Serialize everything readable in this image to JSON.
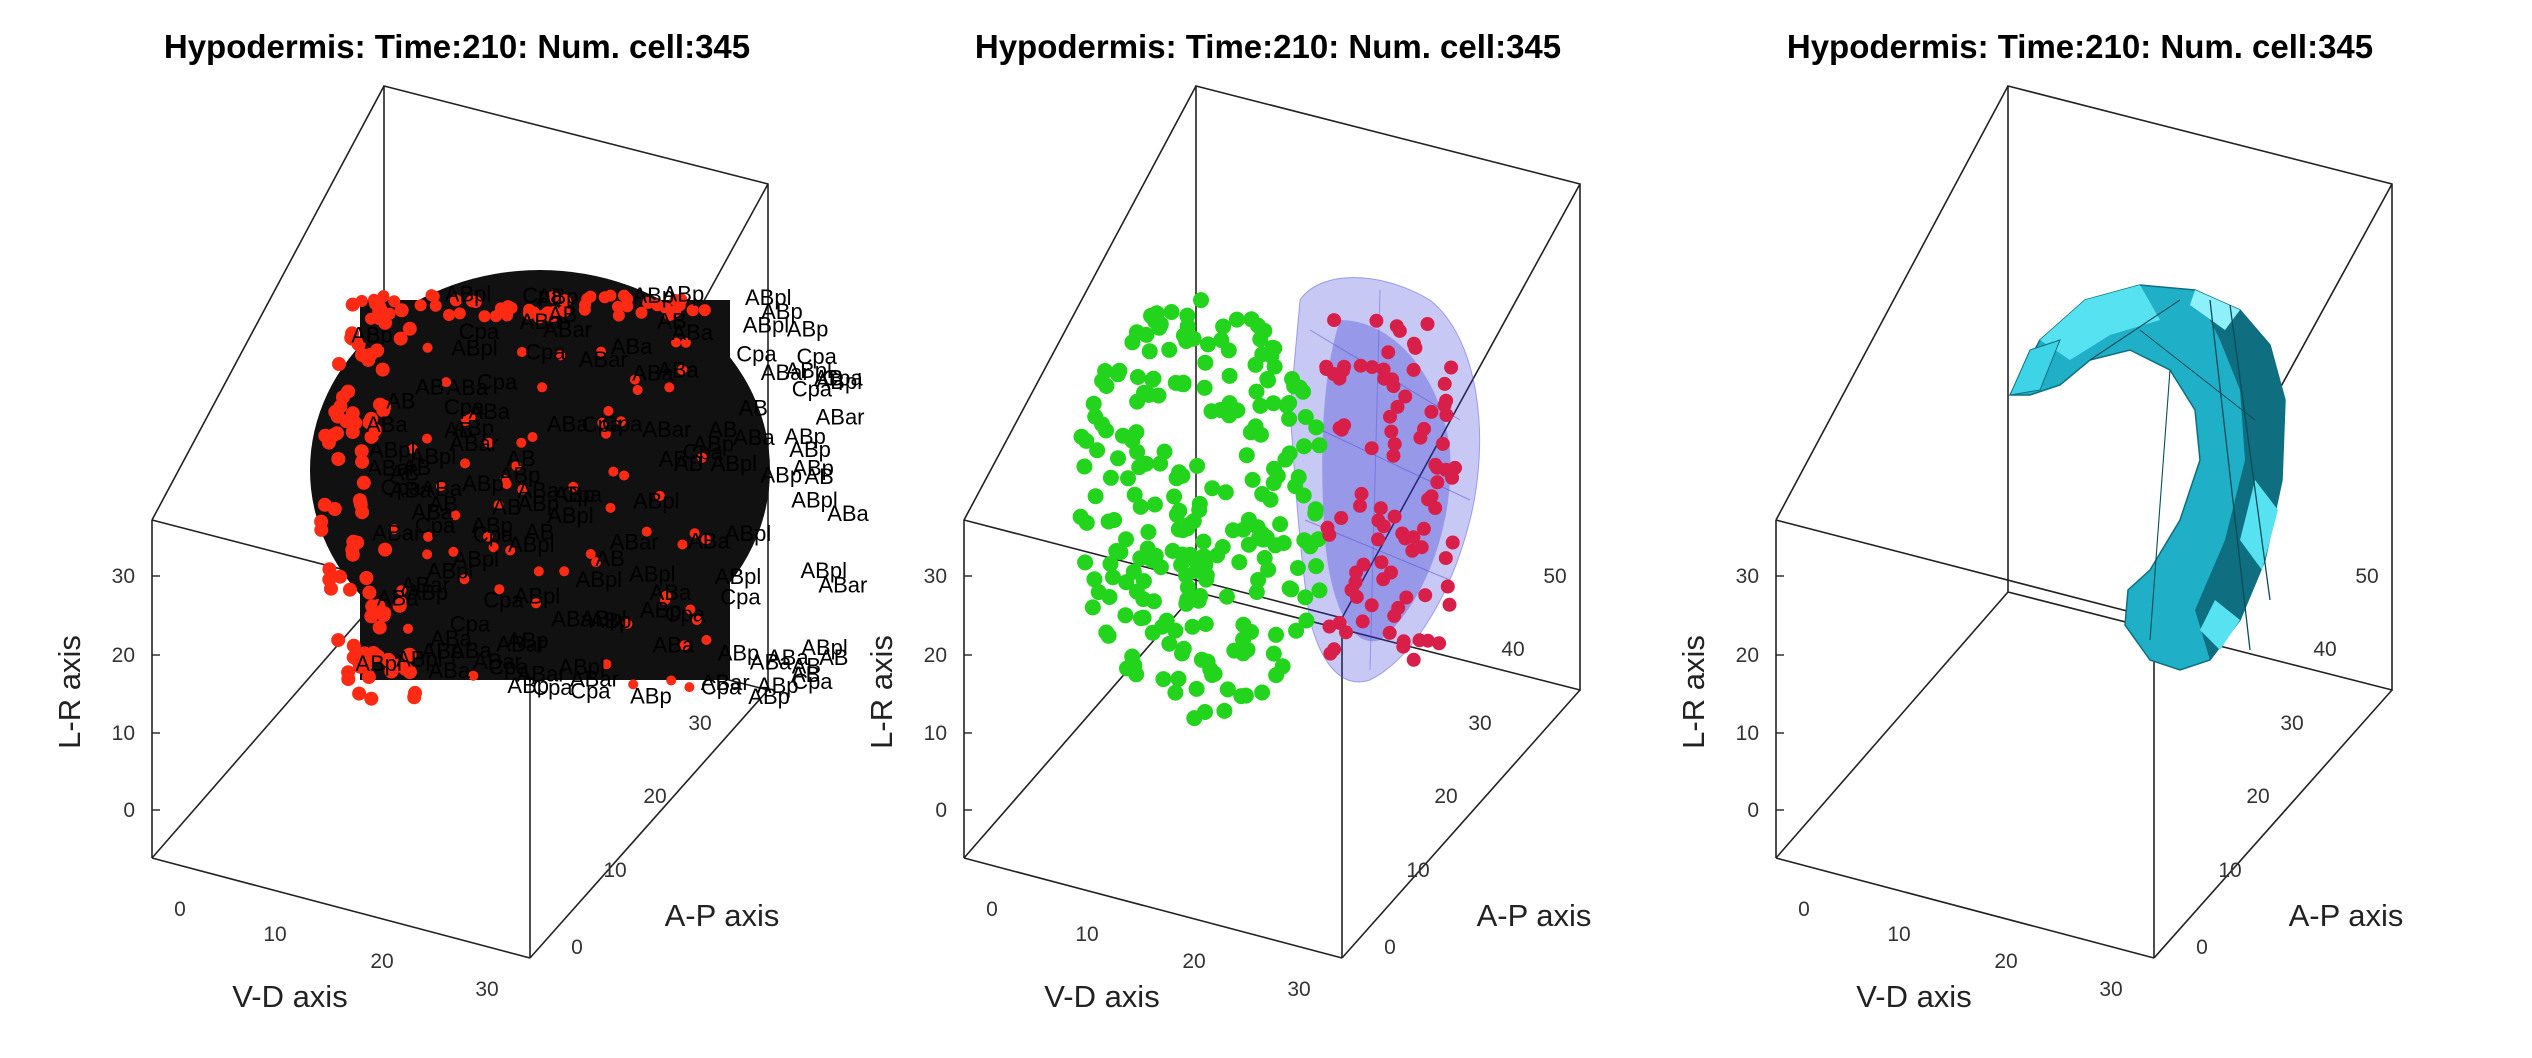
{
  "colors": {
    "background": "#ffffff",
    "red_cells": "#ff2a14",
    "green_cells": "#22d41c",
    "magenta_cells": "#d81f4a",
    "hull_blue": "#3a3ad6",
    "surface_cyan": "#1fb0c8",
    "surface_dark": "#0f6f80",
    "surface_light": "#57e2f2"
  },
  "icons": [],
  "chart_data": [
    {
      "type": "scatter",
      "variant": "3d-scatter-labeled",
      "title": "Hypodermis: Time:210: Num. cell:345",
      "xlabel": "V-D axis",
      "ylabel": "A-P axis",
      "zlabel": "L-R axis",
      "xlim": [
        -5,
        32
      ],
      "ylim": [
        -5,
        32
      ],
      "zlim": [
        -5,
        40
      ],
      "xticks": [
        "0",
        "10",
        "20",
        "30"
      ],
      "yticks": [
        "0",
        "10",
        "20",
        "30"
      ],
      "zticks": [
        "0",
        "10",
        "20",
        "30"
      ],
      "series": [
        {
          "color": "red_cells",
          "count": 345
        }
      ],
      "grid": false,
      "legend": "none"
    },
    {
      "type": "scatter",
      "variant": "3d-scatter-with-hull",
      "title": "Hypodermis: Time:210: Num. cell:345",
      "xlabel": "V-D axis",
      "ylabel": "A-P axis",
      "zlabel": "L-R axis",
      "xlim": [
        -5,
        32
      ],
      "ylim": [
        -5,
        55
      ],
      "zlim": [
        -5,
        40
      ],
      "xticks": [
        "0",
        "10",
        "20",
        "30"
      ],
      "yticks": [
        "0",
        "10",
        "20",
        "30",
        "40",
        "50"
      ],
      "zticks": [
        "0",
        "10",
        "20",
        "30"
      ],
      "series": [
        {
          "color": "green_cells",
          "count": 250
        },
        {
          "color": "magenta_cells",
          "count": 95
        }
      ],
      "hull": {
        "color": "hull_blue",
        "opacity": 0.3
      },
      "grid": false,
      "legend": "none"
    },
    {
      "type": "area",
      "variant": "3d-surface",
      "title": "Hypodermis: Time:210: Num. cell:345",
      "xlabel": "V-D axis",
      "ylabel": "A-P axis",
      "zlabel": "L-R axis",
      "xlim": [
        -5,
        32
      ],
      "ylim": [
        -5,
        55
      ],
      "zlim": [
        -5,
        40
      ],
      "xticks": [
        "0",
        "10",
        "20",
        "30"
      ],
      "yticks": [
        "0",
        "10",
        "20",
        "30",
        "40",
        "50"
      ],
      "zticks": [
        "0",
        "10",
        "20",
        "30"
      ],
      "surface": {
        "color": "surface_cyan"
      },
      "grid": false,
      "legend": "none"
    }
  ]
}
